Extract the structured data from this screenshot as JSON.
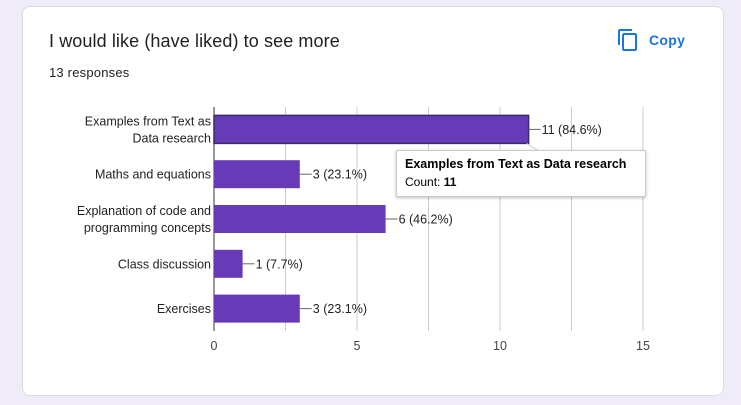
{
  "card": {
    "title": "I would like (have liked) to see more",
    "responses": "13 responses",
    "copy_label": "Copy",
    "copy_icon": "copy-icon",
    "accent_color": "#1a73e8"
  },
  "tooltip": {
    "title": "Examples from Text as Data research",
    "count_label": "Count: ",
    "count_value": "11"
  },
  "chart_data": {
    "type": "bar",
    "orientation": "horizontal",
    "categories": [
      [
        "Examples from Text as",
        "Data research"
      ],
      [
        "Maths and equations"
      ],
      [
        "Explanation of code and",
        "programming concepts"
      ],
      [
        "Class discussion"
      ],
      [
        "Exercises"
      ]
    ],
    "values": [
      11,
      3,
      6,
      1,
      3
    ],
    "data_labels": [
      "11 (84.6%)",
      "3 (23.1%)",
      "6 (46.2%)",
      "1 (7.7%)",
      "3 (23.1%)"
    ],
    "xlim": [
      0,
      15
    ],
    "xticks": [
      0,
      5,
      10,
      15
    ],
    "grid": true,
    "bar_color": "#673ab7",
    "highlighted_index": 0
  }
}
